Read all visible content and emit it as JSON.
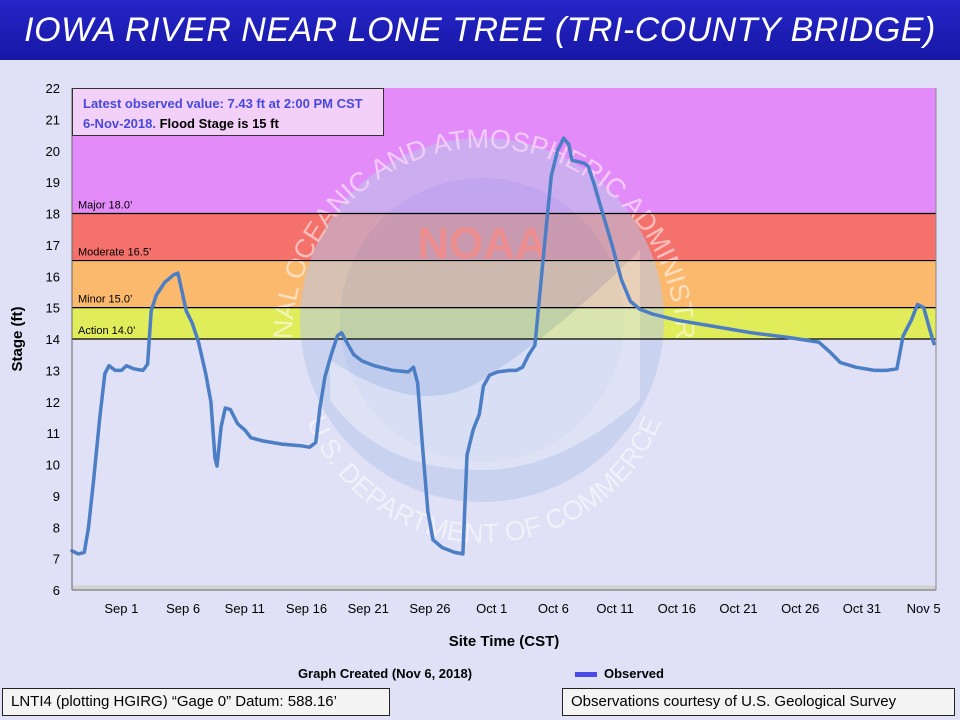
{
  "header": {
    "title": "IOWA RIVER NEAR LONE TREE (TRI-COUNTY BRIDGE)"
  },
  "info": {
    "latest": "Latest observed value: 7.43 ft at 2:00 PM CST 6-Nov-2018.",
    "flood": "Flood Stage is 15 ft"
  },
  "legend": {
    "created": "Graph Created (Nov 6, 2018)",
    "series": "Observed"
  },
  "footer": {
    "left": "LNTI4 (plotting HGIRG) “Gage 0” Datum: 588.16’",
    "right": "Observations courtesy of U.S. Geological Survey"
  },
  "watermark": {
    "center": "NOAA",
    "top": "NATIONAL OCEANIC AND ATMOSPHERIC ADMINISTRATION",
    "bottom": "U.S. DEPARTMENT OF COMMERCE"
  },
  "colors": {
    "major": "#e38cf9",
    "moderate": "#f4716c",
    "minor": "#fbb96e",
    "action": "#e1ec5a",
    "below": "#e0e0f6",
    "series": "#4b7ec4",
    "watermark": "#b8c8ea"
  },
  "chart_data": {
    "type": "line",
    "xlabel": "Site Time (CST)",
    "ylabel": "Stage (ft)",
    "ylim": [
      6,
      22
    ],
    "yticks": [
      6,
      7,
      8,
      9,
      10,
      11,
      12,
      13,
      14,
      15,
      16,
      17,
      18,
      19,
      20,
      21,
      22
    ],
    "xlim": [
      "2018-08-28",
      "2018-11-06"
    ],
    "xticks": [
      {
        "label": "Sep 1",
        "date": "2018-09-01"
      },
      {
        "label": "Sep 6",
        "date": "2018-09-06"
      },
      {
        "label": "Sep 11",
        "date": "2018-09-11"
      },
      {
        "label": "Sep 16",
        "date": "2018-09-16"
      },
      {
        "label": "Sep 21",
        "date": "2018-09-21"
      },
      {
        "label": "Sep 26",
        "date": "2018-09-26"
      },
      {
        "label": "Oct 1",
        "date": "2018-10-01"
      },
      {
        "label": "Oct 6",
        "date": "2018-10-06"
      },
      {
        "label": "Oct 11",
        "date": "2018-10-11"
      },
      {
        "label": "Oct 16",
        "date": "2018-10-16"
      },
      {
        "label": "Oct 21",
        "date": "2018-10-21"
      },
      {
        "label": "Oct 26",
        "date": "2018-10-26"
      },
      {
        "label": "Oct 31",
        "date": "2018-10-31"
      },
      {
        "label": "Nov 5",
        "date": "2018-11-05"
      }
    ],
    "thresholds": [
      {
        "label": "Major 18.0’",
        "value": 18.0
      },
      {
        "label": "Moderate 16.5’",
        "value": 16.5
      },
      {
        "label": "Minor 15.0’",
        "value": 15.0
      },
      {
        "label": "Action 14.0’",
        "value": 14.0
      }
    ],
    "series": [
      {
        "name": "Observed",
        "points": [
          [
            "2018-08-28T00:00",
            7.25
          ],
          [
            "2018-08-28T12:00",
            7.15
          ],
          [
            "2018-08-29T00:00",
            7.2
          ],
          [
            "2018-08-29T08:00",
            8.0
          ],
          [
            "2018-08-29T18:00",
            9.5
          ],
          [
            "2018-08-30T06:00",
            11.5
          ],
          [
            "2018-08-30T16:00",
            12.9
          ],
          [
            "2018-08-31T00:00",
            13.15
          ],
          [
            "2018-08-31T12:00",
            13.0
          ],
          [
            "2018-09-01T00:00",
            13.0
          ],
          [
            "2018-09-01T10:00",
            13.15
          ],
          [
            "2018-09-02T00:00",
            13.05
          ],
          [
            "2018-09-02T18:00",
            13.0
          ],
          [
            "2018-09-03T03:00",
            13.2
          ],
          [
            "2018-09-03T10:00",
            14.9
          ],
          [
            "2018-09-03T20:00",
            15.4
          ],
          [
            "2018-09-04T12:00",
            15.8
          ],
          [
            "2018-09-05T06:00",
            16.05
          ],
          [
            "2018-09-05T14:00",
            16.1
          ],
          [
            "2018-09-05T22:00",
            15.5
          ],
          [
            "2018-09-06T06:00",
            14.9
          ],
          [
            "2018-09-06T18:00",
            14.5
          ],
          [
            "2018-09-07T06:00",
            13.9
          ],
          [
            "2018-09-07T20:00",
            12.9
          ],
          [
            "2018-09-08T06:00",
            12.0
          ],
          [
            "2018-09-08T14:00",
            10.2
          ],
          [
            "2018-09-08T18:00",
            9.95
          ],
          [
            "2018-09-09T02:00",
            11.2
          ],
          [
            "2018-09-09T10:00",
            11.8
          ],
          [
            "2018-09-09T20:00",
            11.75
          ],
          [
            "2018-09-10T10:00",
            11.3
          ],
          [
            "2018-09-11T00:00",
            11.1
          ],
          [
            "2018-09-11T12:00",
            10.85
          ],
          [
            "2018-09-12T12:00",
            10.75
          ],
          [
            "2018-09-14T00:00",
            10.65
          ],
          [
            "2018-09-15T12:00",
            10.6
          ],
          [
            "2018-09-16T06:00",
            10.55
          ],
          [
            "2018-09-16T18:00",
            10.7
          ],
          [
            "2018-09-17T02:00",
            11.8
          ],
          [
            "2018-09-17T12:00",
            12.8
          ],
          [
            "2018-09-18T00:00",
            13.5
          ],
          [
            "2018-09-18T12:00",
            14.1
          ],
          [
            "2018-09-18T20:00",
            14.2
          ],
          [
            "2018-09-19T06:00",
            13.9
          ],
          [
            "2018-09-19T20:00",
            13.5
          ],
          [
            "2018-09-20T12:00",
            13.3
          ],
          [
            "2018-09-21T12:00",
            13.15
          ],
          [
            "2018-09-23T00:00",
            13.0
          ],
          [
            "2018-09-24T06:00",
            12.95
          ],
          [
            "2018-09-24T16:00",
            13.1
          ],
          [
            "2018-09-25T00:00",
            12.6
          ],
          [
            "2018-09-25T10:00",
            10.5
          ],
          [
            "2018-09-25T20:00",
            8.5
          ],
          [
            "2018-09-26T06:00",
            7.6
          ],
          [
            "2018-09-27T00:00",
            7.35
          ],
          [
            "2018-09-28T00:00",
            7.2
          ],
          [
            "2018-09-28T16:00",
            7.15
          ],
          [
            "2018-09-29T00:00",
            10.3
          ],
          [
            "2018-09-29T12:00",
            11.1
          ],
          [
            "2018-09-30T00:00",
            11.6
          ],
          [
            "2018-09-30T08:00",
            12.5
          ],
          [
            "2018-09-30T20:00",
            12.85
          ],
          [
            "2018-10-01T12:00",
            12.95
          ],
          [
            "2018-10-02T12:00",
            13.0
          ],
          [
            "2018-10-03T00:00",
            13.0
          ],
          [
            "2018-10-03T12:00",
            13.1
          ],
          [
            "2018-10-04T00:00",
            13.5
          ],
          [
            "2018-10-04T12:00",
            13.8
          ],
          [
            "2018-10-04T22:00",
            15.5
          ],
          [
            "2018-10-05T08:00",
            17.2
          ],
          [
            "2018-10-05T20:00",
            19.2
          ],
          [
            "2018-10-06T08:00",
            20.0
          ],
          [
            "2018-10-06T20:00",
            20.4
          ],
          [
            "2018-10-07T06:00",
            20.2
          ],
          [
            "2018-10-07T12:00",
            19.7
          ],
          [
            "2018-10-08T00:00",
            19.65
          ],
          [
            "2018-10-08T12:00",
            19.6
          ],
          [
            "2018-10-08T20:00",
            19.5
          ],
          [
            "2018-10-09T06:00",
            19.0
          ],
          [
            "2018-10-10T00:00",
            18.0
          ],
          [
            "2018-10-10T18:00",
            17.0
          ],
          [
            "2018-10-11T12:00",
            15.9
          ],
          [
            "2018-10-12T06:00",
            15.2
          ],
          [
            "2018-10-13T00:00",
            14.95
          ],
          [
            "2018-10-14T00:00",
            14.8
          ],
          [
            "2018-10-16T00:00",
            14.6
          ],
          [
            "2018-10-19T00:00",
            14.4
          ],
          [
            "2018-10-22T00:00",
            14.2
          ],
          [
            "2018-10-25T00:00",
            14.05
          ],
          [
            "2018-10-27T12:00",
            13.9
          ],
          [
            "2018-10-28T12:00",
            13.55
          ],
          [
            "2018-10-29T06:00",
            13.25
          ],
          [
            "2018-10-30T12:00",
            13.1
          ],
          [
            "2018-11-01T00:00",
            13.0
          ],
          [
            "2018-11-02T00:00",
            13.0
          ],
          [
            "2018-11-02T20:00",
            13.05
          ],
          [
            "2018-11-03T08:00",
            14.1
          ],
          [
            "2018-11-04T00:00",
            14.6
          ],
          [
            "2018-11-04T12:00",
            15.1
          ],
          [
            "2018-11-05T00:00",
            15.0
          ],
          [
            "2018-11-05T12:00",
            14.3
          ],
          [
            "2018-11-05T20:00",
            13.85
          ]
        ]
      }
    ]
  }
}
